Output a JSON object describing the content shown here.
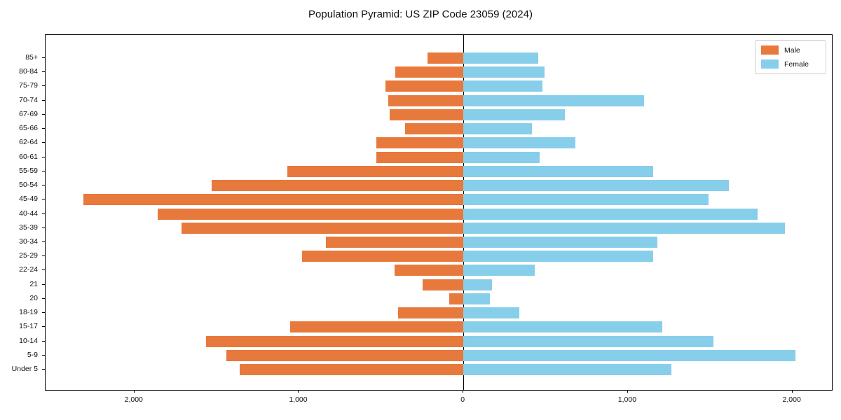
{
  "title": "Population Pyramid: US ZIP Code 23059 (2024)",
  "legend": {
    "male_label": "Male",
    "female_label": "Female"
  },
  "colors": {
    "male": "#e8793c",
    "female": "#87ceeb",
    "axis": "#000000"
  },
  "chart_data": {
    "type": "bar",
    "subtype": "population-pyramid",
    "title": "Population Pyramid: US ZIP Code 23059 (2024)",
    "categories": [
      "85+",
      "80-84",
      "75-79",
      "70-74",
      "67-69",
      "65-66",
      "62-64",
      "60-61",
      "55-59",
      "50-54",
      "45-49",
      "40-44",
      "35-39",
      "30-34",
      "25-29",
      "22-24",
      "21",
      "20",
      "18-19",
      "15-17",
      "10-14",
      "5-9",
      "Under 5"
    ],
    "series": [
      {
        "name": "Male",
        "side": "left",
        "color": "#e8793c",
        "values": [
          220,
          415,
          475,
          455,
          450,
          355,
          530,
          530,
          1070,
          1530,
          2310,
          1860,
          1715,
          835,
          980,
          420,
          250,
          85,
          395,
          1055,
          1565,
          1440,
          1360
        ]
      },
      {
        "name": "Female",
        "side": "right",
        "color": "#87ceeb",
        "values": [
          455,
          495,
          480,
          1100,
          615,
          415,
          680,
          465,
          1155,
          1615,
          1490,
          1790,
          1955,
          1180,
          1155,
          435,
          175,
          160,
          340,
          1210,
          1520,
          2020,
          1265
        ]
      }
    ],
    "x_tick_values": [
      -2000,
      -1000,
      0,
      1000,
      2000
    ],
    "x_tick_labels": [
      "2,000",
      "1,000",
      "0",
      "1,000",
      "2,000"
    ],
    "xlim": [
      -2540,
      2240
    ],
    "xlabel": "",
    "ylabel": "",
    "grid": false,
    "zero_line": true,
    "legend_position": "upper right"
  }
}
